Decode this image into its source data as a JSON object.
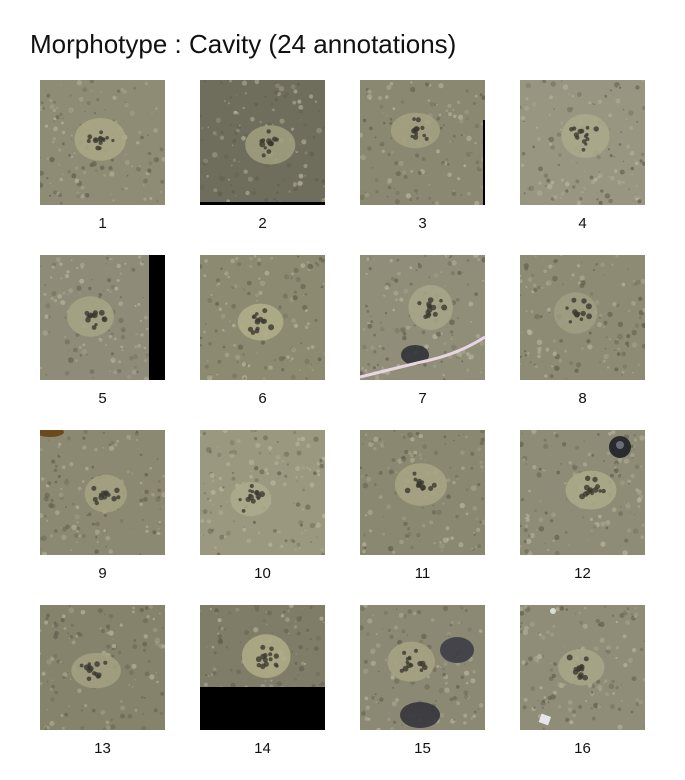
{
  "title": "Morphotype : Cavity (24 annotations)",
  "thumbnails": [
    {
      "label": "1",
      "bg": "#8f8c76",
      "patch": "#aaa886",
      "artifact": "none"
    },
    {
      "label": "2",
      "bg": "#6f6d5c",
      "patch": "#a2a07f",
      "artifact": "bottom-black-line"
    },
    {
      "label": "3",
      "bg": "#8b8872",
      "patch": "#a4a283",
      "artifact": "right-black-line"
    },
    {
      "label": "4",
      "bg": "#989680",
      "patch": "#acaa8c",
      "artifact": "none"
    },
    {
      "label": "5",
      "bg": "#8e8c78",
      "patch": "#a7a586",
      "artifact": "right-black-bar"
    },
    {
      "label": "6",
      "bg": "#8c8a70",
      "patch": "#b2ae8a",
      "artifact": "none"
    },
    {
      "label": "7",
      "bg": "#908e78",
      "patch": "#a9a789",
      "artifact": "pink-string"
    },
    {
      "label": "8",
      "bg": "#8d8b74",
      "patch": "#a19f82",
      "artifact": "none"
    },
    {
      "label": "9",
      "bg": "#8c8972",
      "patch": "#a6a383",
      "artifact": "top-left-stain"
    },
    {
      "label": "10",
      "bg": "#9a987e",
      "patch": "#aeac8d",
      "artifact": "none"
    },
    {
      "label": "11",
      "bg": "#8a8870",
      "patch": "#a8a685",
      "artifact": "none"
    },
    {
      "label": "12",
      "bg": "#8e8c76",
      "patch": "#abaa8a",
      "artifact": "dark-blob-top-right"
    },
    {
      "label": "13",
      "bg": "#85836c",
      "patch": "#a3a182",
      "artifact": "none"
    },
    {
      "label": "14",
      "bg": "#7f7d68",
      "patch": "#b0ad88",
      "artifact": "bottom-black-bar"
    },
    {
      "label": "15",
      "bg": "#8b8873",
      "patch": "#a7a585",
      "artifact": "dark-blobs"
    },
    {
      "label": "16",
      "bg": "#8f8d77",
      "patch": "#a9a788",
      "artifact": "white-debris"
    }
  ]
}
